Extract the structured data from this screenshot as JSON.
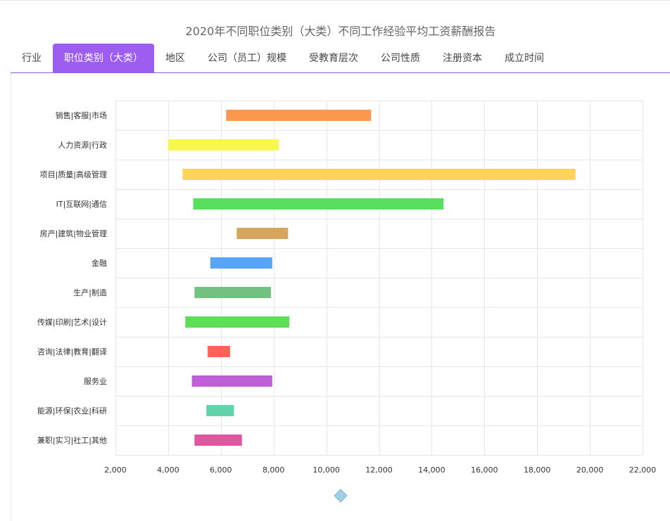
{
  "page": {
    "title": "2020年不同职位类别（大类）不同工作经验平均工资薪酬报告"
  },
  "tabs": [
    {
      "label": "行业",
      "active": false
    },
    {
      "label": "职位类别（大类）",
      "active": true
    },
    {
      "label": "地区",
      "active": false
    },
    {
      "label": "公司（员工）规模",
      "active": false
    },
    {
      "label": "受教育层次",
      "active": false
    },
    {
      "label": "公司性质",
      "active": false
    },
    {
      "label": "注册资本",
      "active": false
    },
    {
      "label": "成立时间",
      "active": false
    }
  ],
  "colors": {
    "accent": "#9c5df0",
    "grid": "#e6e6e6",
    "slider": "#9fd0e8"
  },
  "chart_data": {
    "type": "bar",
    "orientation": "horizontal-range",
    "xlim": [
      2000,
      22000
    ],
    "xticks": [
      2000,
      4000,
      6000,
      8000,
      10000,
      12000,
      14000,
      16000,
      18000,
      20000,
      22000
    ],
    "xtick_labels": [
      "2,000",
      "4,000",
      "6,000",
      "8,000",
      "10,000",
      "12,000",
      "14,000",
      "16,000",
      "18,000",
      "20,000",
      "22,000"
    ],
    "grid": true,
    "categories": [
      "销售|客服|市场",
      "人力资源|行政",
      "项目|质量|高级管理",
      "IT|互联网|通信",
      "房产|建筑|物业管理",
      "金融",
      "生产|制造",
      "传媒|印刷|艺术|设计",
      "咨询|法律|教育|翻译",
      "服务业",
      "能源|环保|农业|科研",
      "兼职|实习|社工|其他"
    ],
    "ranges": [
      [
        6200,
        11700
      ],
      [
        4000,
        8200
      ],
      [
        4550,
        19450
      ],
      [
        4950,
        14450
      ],
      [
        6600,
        8550
      ],
      [
        5600,
        7950
      ],
      [
        5000,
        7900
      ],
      [
        4650,
        8600
      ],
      [
        5500,
        6350
      ],
      [
        4900,
        7950
      ],
      [
        5450,
        6500
      ],
      [
        5000,
        6800
      ]
    ],
    "bar_colors": [
      "#fb9444",
      "#f7f745",
      "#ffd24e",
      "#50dd55",
      "#d4a055",
      "#4da0f6",
      "#6bbf78",
      "#55dd4e",
      "#fc5a4c",
      "#ba56d6",
      "#58d2a6",
      "#dd4f9a"
    ]
  }
}
